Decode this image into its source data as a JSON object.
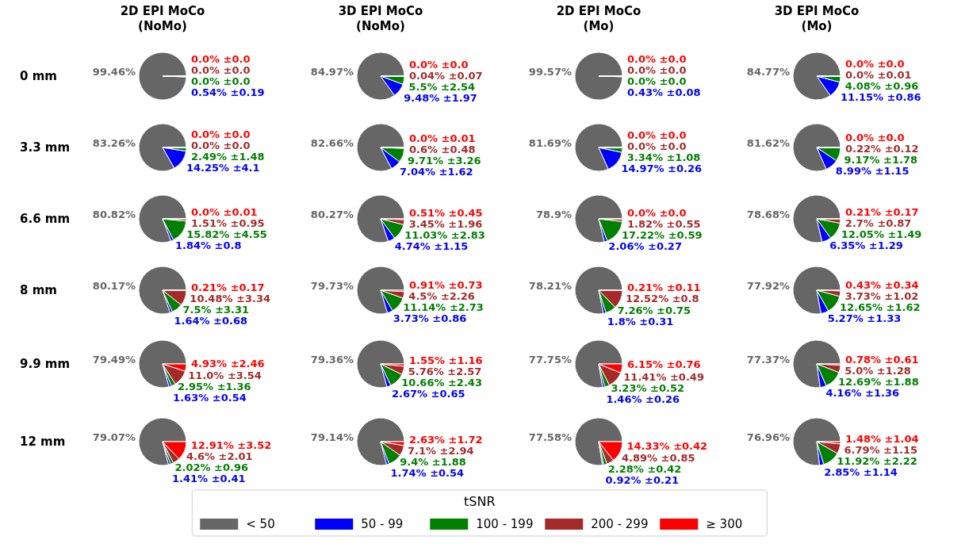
{
  "chart_data": [
    {
      "type": "pie",
      "title": "2D EPI MoCo\n(NoMo)",
      "ylabel": "0 mm",
      "legend": "bottom",
      "legend_title": "tSNR",
      "categories": [
        "< 50",
        "50 - 99",
        "100 - 199",
        "200 - 299",
        "≥ 300"
      ],
      "colors": [
        "#666666",
        "#0000ff",
        "#008000",
        "#a52a2a",
        "#ff0000"
      ],
      "values": [
        99.46,
        0.54,
        0.0,
        0.0,
        0.0
      ],
      "value_labels": [
        "99.46%",
        "0.54% ±0.19",
        "0.0% ±0.0",
        "0.0% ±0.0",
        "0.0% ±0.0"
      ]
    },
    {
      "type": "pie",
      "title": "3D EPI MoCo\n(NoMo)",
      "colors": [
        "#666666",
        "#0000ff",
        "#008000",
        "#a52a2a",
        "#ff0000"
      ],
      "values": [
        84.97,
        9.48,
        5.5,
        0.04,
        0.0
      ],
      "value_labels": [
        "84.97%",
        "9.48% ±1.97",
        "5.5% ±2.54",
        "0.04% ±0.07",
        "0.0% ±0.0"
      ]
    },
    {
      "type": "pie",
      "title": "2D EPI MoCo\n(Mo)",
      "colors": [
        "#666666",
        "#0000ff",
        "#008000",
        "#a52a2a",
        "#ff0000"
      ],
      "values": [
        99.57,
        0.43,
        0.0,
        0.0,
        0.0
      ],
      "value_labels": [
        "99.57%",
        "0.43% ±0.08",
        "0.0% ±0.0",
        "0.0% ±0.0",
        "0.0% ±0.0"
      ]
    },
    {
      "type": "pie",
      "title": "3D EPI MoCo\n(Mo)",
      "colors": [
        "#666666",
        "#0000ff",
        "#008000",
        "#a52a2a",
        "#ff0000"
      ],
      "values": [
        84.77,
        11.15,
        4.08,
        0.0,
        0.0
      ],
      "value_labels": [
        "84.77%",
        "11.15% ±0.86",
        "4.08% ±0.96",
        "0.0% ±0.01",
        "0.0% ±0.0"
      ]
    },
    {
      "type": "pie",
      "ylabel": "3.3 mm",
      "colors": [
        "#666666",
        "#0000ff",
        "#008000",
        "#a52a2a",
        "#ff0000"
      ],
      "values": [
        83.26,
        14.25,
        2.49,
        0.0,
        0.0
      ],
      "value_labels": [
        "83.26%",
        "14.25% ±4.1",
        "2.49% ±1.48",
        "0.0% ±0.0",
        "0.0% ±0.0"
      ]
    },
    {
      "type": "pie",
      "colors": [
        "#666666",
        "#0000ff",
        "#008000",
        "#a52a2a",
        "#ff0000"
      ],
      "values": [
        82.66,
        7.04,
        9.71,
        0.6,
        0.0
      ],
      "value_labels": [
        "82.66%",
        "7.04% ±1.62",
        "9.71% ±3.26",
        "0.6% ±0.48",
        "0.0% ±0.01"
      ]
    },
    {
      "type": "pie",
      "colors": [
        "#666666",
        "#0000ff",
        "#008000",
        "#a52a2a",
        "#ff0000"
      ],
      "values": [
        81.69,
        14.97,
        3.34,
        0.0,
        0.0
      ],
      "value_labels": [
        "81.69%",
        "14.97% ±0.26",
        "3.34% ±1.08",
        "0.0% ±0.0",
        "0.0% ±0.0"
      ]
    },
    {
      "type": "pie",
      "colors": [
        "#666666",
        "#0000ff",
        "#008000",
        "#a52a2a",
        "#ff0000"
      ],
      "values": [
        81.62,
        8.99,
        9.17,
        0.22,
        0.0
      ],
      "value_labels": [
        "81.62%",
        "8.99% ±1.15",
        "9.17% ±1.78",
        "0.22% ±0.12",
        "0.0% ±0.0"
      ]
    },
    {
      "type": "pie",
      "ylabel": "6.6 mm",
      "colors": [
        "#666666",
        "#0000ff",
        "#008000",
        "#a52a2a",
        "#ff0000"
      ],
      "values": [
        80.82,
        1.84,
        15.82,
        1.51,
        0.0
      ],
      "value_labels": [
        "80.82%",
        "1.84% ±0.8",
        "15.82% ±4.55",
        "1.51% ±0.95",
        "0.0% ±0.01"
      ]
    },
    {
      "type": "pie",
      "colors": [
        "#666666",
        "#0000ff",
        "#008000",
        "#a52a2a",
        "#ff0000"
      ],
      "values": [
        80.27,
        4.74,
        11.03,
        3.45,
        0.51
      ],
      "value_labels": [
        "80.27%",
        "4.74% ±1.15",
        "11.03% ±2.83",
        "3.45% ±1.96",
        "0.51% ±0.45"
      ]
    },
    {
      "type": "pie",
      "colors": [
        "#666666",
        "#0000ff",
        "#008000",
        "#a52a2a",
        "#ff0000"
      ],
      "values": [
        78.9,
        2.06,
        17.22,
        1.82,
        0.0
      ],
      "value_labels": [
        "78.9%",
        "2.06% ±0.27",
        "17.22% ±0.59",
        "1.82% ±0.55",
        "0.0% ±0.0"
      ]
    },
    {
      "type": "pie",
      "colors": [
        "#666666",
        "#0000ff",
        "#008000",
        "#a52a2a",
        "#ff0000"
      ],
      "values": [
        78.68,
        6.35,
        12.05,
        2.7,
        0.21
      ],
      "value_labels": [
        "78.68%",
        "6.35% ±1.29",
        "12.05% ±1.49",
        "2.7% ±0.87",
        "0.21% ±0.17"
      ]
    },
    {
      "type": "pie",
      "ylabel": "8 mm",
      "colors": [
        "#666666",
        "#0000ff",
        "#008000",
        "#a52a2a",
        "#ff0000"
      ],
      "values": [
        80.17,
        1.64,
        7.5,
        10.48,
        0.21
      ],
      "value_labels": [
        "80.17%",
        "1.64% ±0.68",
        "7.5% ±3.31",
        "10.48% ±3.34",
        "0.21% ±0.17"
      ]
    },
    {
      "type": "pie",
      "colors": [
        "#666666",
        "#0000ff",
        "#008000",
        "#a52a2a",
        "#ff0000"
      ],
      "values": [
        79.73,
        3.73,
        11.14,
        4.5,
        0.91
      ],
      "value_labels": [
        "79.73%",
        "3.73% ±0.86",
        "11.14% ±2.73",
        "4.5% ±2.26",
        "0.91% ±0.73"
      ]
    },
    {
      "type": "pie",
      "colors": [
        "#666666",
        "#0000ff",
        "#008000",
        "#a52a2a",
        "#ff0000"
      ],
      "values": [
        78.21,
        1.8,
        7.26,
        12.52,
        0.21
      ],
      "value_labels": [
        "78.21%",
        "1.8% ±0.31",
        "7.26% ±0.75",
        "12.52% ±0.8",
        "0.21% ±0.11"
      ]
    },
    {
      "type": "pie",
      "colors": [
        "#666666",
        "#0000ff",
        "#008000",
        "#a52a2a",
        "#ff0000"
      ],
      "values": [
        77.92,
        5.27,
        12.65,
        3.73,
        0.43
      ],
      "value_labels": [
        "77.92%",
        "5.27% ±1.33",
        "12.65% ±1.62",
        "3.73% ±1.02",
        "0.43% ±0.34"
      ]
    },
    {
      "type": "pie",
      "ylabel": "9.9 mm",
      "colors": [
        "#666666",
        "#0000ff",
        "#008000",
        "#a52a2a",
        "#ff0000"
      ],
      "values": [
        79.49,
        1.63,
        2.95,
        11.0,
        4.93
      ],
      "value_labels": [
        "79.49%",
        "1.63% ±0.54",
        "2.95% ±1.36",
        "11.0% ±3.54",
        "4.93% ±2.46"
      ]
    },
    {
      "type": "pie",
      "colors": [
        "#666666",
        "#0000ff",
        "#008000",
        "#a52a2a",
        "#ff0000"
      ],
      "values": [
        79.36,
        2.67,
        10.66,
        5.76,
        1.55
      ],
      "value_labels": [
        "79.36%",
        "2.67% ±0.65",
        "10.66% ±2.43",
        "5.76% ±2.57",
        "1.55% ±1.16"
      ]
    },
    {
      "type": "pie",
      "colors": [
        "#666666",
        "#0000ff",
        "#008000",
        "#a52a2a",
        "#ff0000"
      ],
      "values": [
        77.75,
        1.46,
        3.23,
        11.41,
        6.15
      ],
      "value_labels": [
        "77.75%",
        "1.46% ±0.26",
        "3.23% ±0.52",
        "11.41% ±0.49",
        "6.15% ±0.76"
      ]
    },
    {
      "type": "pie",
      "colors": [
        "#666666",
        "#0000ff",
        "#008000",
        "#a52a2a",
        "#ff0000"
      ],
      "values": [
        77.37,
        4.16,
        12.69,
        5.0,
        0.78
      ],
      "value_labels": [
        "77.37%",
        "4.16% ±1.36",
        "12.69% ±1.88",
        "5.0% ±1.28",
        "0.78% ±0.61"
      ]
    },
    {
      "type": "pie",
      "ylabel": "12 mm",
      "colors": [
        "#666666",
        "#0000ff",
        "#008000",
        "#a52a2a",
        "#ff0000"
      ],
      "values": [
        79.07,
        1.41,
        2.02,
        4.6,
        12.91
      ],
      "value_labels": [
        "79.07%",
        "1.41% ±0.41",
        "2.02% ±0.96",
        "4.6% ±2.01",
        "12.91% ±3.52"
      ]
    },
    {
      "type": "pie",
      "colors": [
        "#666666",
        "#0000ff",
        "#008000",
        "#a52a2a",
        "#ff0000"
      ],
      "values": [
        79.14,
        1.74,
        9.4,
        7.1,
        2.63
      ],
      "value_labels": [
        "79.14%",
        "1.74% ±0.54",
        "9.4% ±1.88",
        "7.1% ±2.94",
        "2.63% ±1.72"
      ]
    },
    {
      "type": "pie",
      "colors": [
        "#666666",
        "#0000ff",
        "#008000",
        "#a52a2a",
        "#ff0000"
      ],
      "values": [
        77.58,
        0.92,
        2.28,
        4.89,
        14.33
      ],
      "value_labels": [
        "77.58%",
        "0.92% ±0.21",
        "2.28% ±0.42",
        "4.89% ±0.85",
        "14.33% ±0.42"
      ]
    },
    {
      "type": "pie",
      "colors": [
        "#666666",
        "#0000ff",
        "#008000",
        "#a52a2a",
        "#ff0000"
      ],
      "values": [
        76.96,
        2.85,
        11.92,
        6.79,
        1.48
      ],
      "value_labels": [
        "76.96%",
        "2.85% ±1.14",
        "11.92% ±2.22",
        "6.79% ±1.15",
        "1.48% ±1.04"
      ]
    }
  ]
}
